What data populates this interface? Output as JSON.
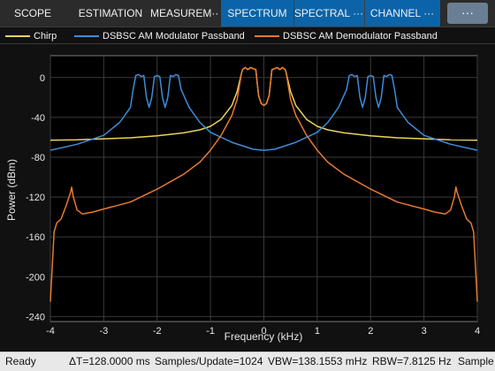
{
  "toolstrip": {
    "tabs": [
      {
        "label": "SCOPE",
        "group": "scope"
      },
      {
        "label": "ESTIMATION",
        "group": "scope"
      },
      {
        "label": "MEASUREM···",
        "group": "scope"
      },
      {
        "label": "SPECTRUM",
        "group": "spectrum"
      },
      {
        "label": "SPECTRAL ···",
        "group": "spectrum"
      },
      {
        "label": "CHANNEL ···",
        "group": "spectrum"
      }
    ],
    "overflow_label": "···",
    "active_group_color": "#0b64a8"
  },
  "legend": [
    {
      "name": "Chirp",
      "color": "#ecd35a"
    },
    {
      "name": "DSBSC AM Modulator Passband",
      "color": "#3c8dd8"
    },
    {
      "name": "DSBSC AM Demodulator Passband",
      "color": "#e57a2f"
    }
  ],
  "chart_data": {
    "type": "line",
    "title": "",
    "xlabel": "Frequency (kHz)",
    "ylabel": "Power (dBm)",
    "xlim": [
      -4,
      4
    ],
    "ylim": [
      -245,
      22
    ],
    "xticks": [
      -4,
      -3,
      -2,
      -1,
      0,
      1,
      2,
      3,
      4
    ],
    "yticks": [
      0,
      -40,
      -80,
      -120,
      -160,
      -200,
      -240
    ],
    "grid": true,
    "legend_position": "top",
    "series": [
      {
        "name": "Chirp",
        "color": "#ecd35a",
        "x": [
          -4,
          -3.5,
          -3,
          -2.5,
          -2,
          -1.5,
          -1.2,
          -1.0,
          -0.8,
          -0.6,
          -0.5,
          -0.42,
          -0.4,
          -0.35,
          -0.3,
          -0.25,
          -0.2,
          -0.15,
          -0.1,
          -0.05,
          0,
          0.05,
          0.1,
          0.15,
          0.2,
          0.25,
          0.3,
          0.35,
          0.4,
          0.42,
          0.5,
          0.6,
          0.8,
          1.0,
          1.2,
          1.5,
          2,
          2.5,
          3,
          3.5,
          4
        ],
        "y": [
          -63,
          -62.5,
          -61.5,
          -60.5,
          -58.5,
          -55.5,
          -52.5,
          -49,
          -42,
          -28,
          -14,
          4,
          8,
          10,
          8,
          10,
          9,
          8,
          -18,
          -26,
          -28,
          -26,
          -18,
          8,
          9,
          10,
          8,
          10,
          8,
          4,
          -14,
          -28,
          -42,
          -49,
          -52.5,
          -55.5,
          -58.5,
          -60.5,
          -61.5,
          -62.5,
          -63
        ]
      },
      {
        "name": "DSBSC AM Modulator Passband",
        "color": "#3c8dd8",
        "x": [
          -4,
          -3.5,
          -3,
          -2.7,
          -2.5,
          -2.45,
          -2.4,
          -2.35,
          -2.3,
          -2.25,
          -2.2,
          -2.15,
          -2.1,
          -2.05,
          -2.0,
          -1.95,
          -1.9,
          -1.85,
          -1.8,
          -1.75,
          -1.7,
          -1.65,
          -1.6,
          -1.55,
          -1.4,
          -1.2,
          -1.0,
          -0.6,
          -0.2,
          0,
          0.2,
          0.6,
          1.0,
          1.2,
          1.4,
          1.55,
          1.6,
          1.65,
          1.7,
          1.75,
          1.8,
          1.85,
          1.9,
          1.95,
          2.0,
          2.05,
          2.1,
          2.15,
          2.2,
          2.25,
          2.3,
          2.35,
          2.4,
          2.45,
          2.5,
          2.7,
          3,
          3.5,
          4
        ],
        "y": [
          -73,
          -67,
          -58,
          -45,
          -30,
          -12,
          2,
          3,
          1,
          2,
          -20,
          -30,
          -20,
          1,
          2,
          1,
          -20,
          -30,
          -20,
          2,
          1,
          3,
          2,
          -12,
          -30,
          -45,
          -55,
          -65,
          -72,
          -73,
          -72,
          -65,
          -55,
          -45,
          -30,
          -12,
          2,
          3,
          1,
          2,
          -20,
          -30,
          -20,
          1,
          2,
          1,
          -20,
          -30,
          -20,
          2,
          1,
          3,
          2,
          -12,
          -30,
          -45,
          -58,
          -67,
          -73
        ]
      },
      {
        "name": "DSBSC AM Demodulator Passband",
        "color": "#e57a2f",
        "x": [
          -4,
          -3.97,
          -3.93,
          -3.88,
          -3.8,
          -3.7,
          -3.62,
          -3.6,
          -3.57,
          -3.5,
          -3.4,
          -3.2,
          -3.0,
          -2.5,
          -2.0,
          -1.5,
          -1.2,
          -1.0,
          -0.8,
          -0.6,
          -0.5,
          -0.42,
          -0.4,
          -0.35,
          -0.3,
          -0.25,
          -0.2,
          -0.15,
          -0.1,
          -0.05,
          0,
          0.05,
          0.1,
          0.15,
          0.2,
          0.25,
          0.3,
          0.35,
          0.4,
          0.42,
          0.5,
          0.6,
          0.8,
          1.0,
          1.2,
          1.5,
          2.0,
          2.5,
          3.0,
          3.2,
          3.4,
          3.5,
          3.57,
          3.6,
          3.62,
          3.7,
          3.8,
          3.88,
          3.93,
          3.97,
          4
        ],
        "y": [
          -225,
          -195,
          -155,
          -146,
          -142,
          -128,
          -115,
          -110,
          -120,
          -133,
          -137,
          -135,
          -132,
          -125,
          -112,
          -97,
          -85,
          -73,
          -58,
          -38,
          -22,
          4,
          8,
          10,
          8,
          10,
          9,
          8,
          -18,
          -26,
          -28,
          -26,
          -18,
          8,
          9,
          10,
          8,
          10,
          8,
          4,
          -22,
          -38,
          -58,
          -73,
          -85,
          -97,
          -112,
          -125,
          -132,
          -135,
          -137,
          -133,
          -120,
          -110,
          -115,
          -128,
          -142,
          -146,
          -155,
          -195,
          -225
        ]
      }
    ]
  },
  "status": {
    "state": "Ready",
    "delta_t": "ΔT=128.0000 ms",
    "samples_update": "Samples/Update=1024",
    "vbw": "VBW=138.1553 mHz",
    "rbw": "RBW=7.8125 Hz",
    "samples_trunc": "Sample"
  }
}
